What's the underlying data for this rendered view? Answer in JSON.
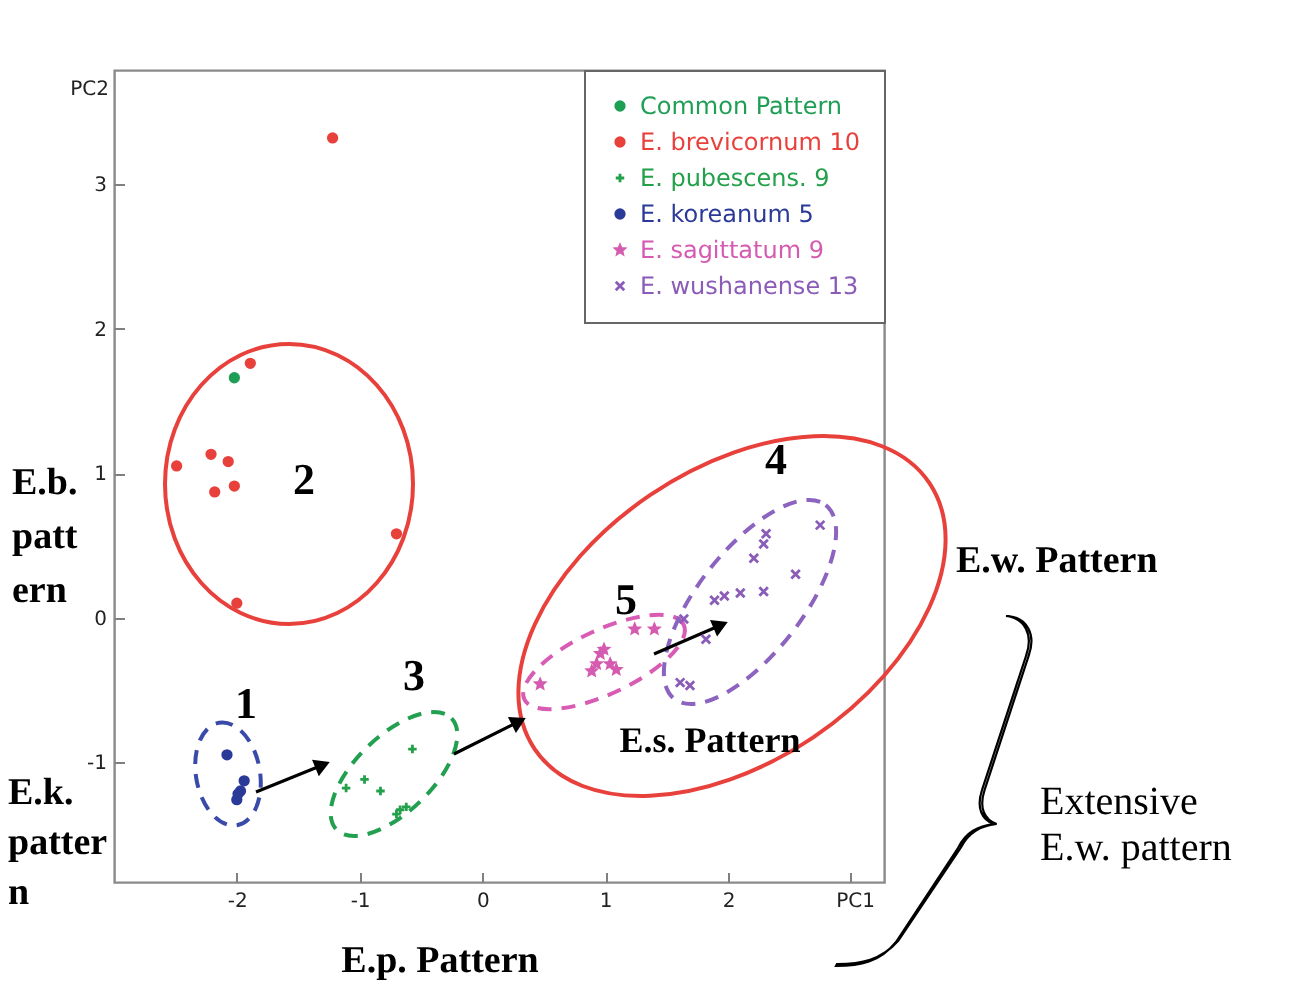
{
  "chart_data": {
    "type": "scatter",
    "xlabel": "PC1",
    "ylabel": "PC2",
    "xlim": [
      -3,
      3.27
    ],
    "ylim": [
      -1.83,
      3.79
    ],
    "xticks": [
      -2,
      -1,
      0,
      1,
      2,
      {
        "value": 3,
        "label": null
      }
    ],
    "yticks": [
      -1,
      0,
      1,
      2,
      3
    ],
    "legend": "top right",
    "series": [
      {
        "name": "Common Pattern",
        "color": "#1f9e55",
        "marker": "circle",
        "x": [
          -2.02
        ],
        "values": [
          1.66
        ]
      },
      {
        "name": "E. brevicornum 10",
        "color": "#e8413c",
        "marker": "circle",
        "x": [
          -1.22,
          -1.89,
          -2.49,
          -2.21,
          -2.07,
          -2.18,
          -2.02,
          -0.7,
          -2.0
        ],
        "values": [
          3.32,
          1.76,
          1.05,
          1.13,
          1.08,
          0.87,
          0.91,
          0.58,
          0.1
        ]
      },
      {
        "name": "E. pubescens. 9",
        "color": "#22a04a",
        "marker": "cross",
        "x": [
          -0.57,
          -1.11,
          -0.96,
          -0.83,
          -0.67,
          -0.7,
          -0.62
        ],
        "values": [
          -0.91,
          -1.18,
          -1.12,
          -1.2,
          -1.33,
          -1.36,
          -1.31
        ]
      },
      {
        "name": "E. koreanum 5",
        "color": "#2b3a98",
        "marker": "circle",
        "x": [
          -2.08,
          -1.94,
          -1.97,
          -2.0,
          -1.99
        ],
        "values": [
          -0.95,
          -1.13,
          -1.2,
          -1.26,
          -1.22
        ]
      },
      {
        "name": "E. sagittatum 9",
        "color": "#d45bb0",
        "marker": "star",
        "x": [
          0.47,
          0.89,
          0.93,
          0.96,
          0.99,
          1.04,
          1.09,
          1.24,
          1.4
        ],
        "values": [
          -0.46,
          -0.37,
          -0.32,
          -0.25,
          -0.22,
          -0.32,
          -0.36,
          -0.08,
          -0.08
        ]
      },
      {
        "name": "E. wushanense 13",
        "color": "#8a5cb8",
        "marker": "cross",
        "x": [
          2.75,
          2.31,
          2.29,
          2.21,
          2.55,
          2.29,
          2.1,
          1.97,
          1.89,
          1.82,
          1.64,
          1.69,
          1.61
        ],
        "values": [
          0.64,
          0.58,
          0.51,
          0.41,
          0.3,
          0.18,
          0.17,
          0.15,
          0.12,
          -0.15,
          -0.01,
          -0.47,
          -0.45
        ]
      }
    ],
    "annotations": [
      "1",
      "2",
      "3",
      "4",
      "5",
      "E.b. pattern",
      "E.k. pattern",
      "E.p. Pattern",
      "E.s. Pattern",
      "E.w. Pattern",
      "Extensive E.w. pattern"
    ]
  }
}
